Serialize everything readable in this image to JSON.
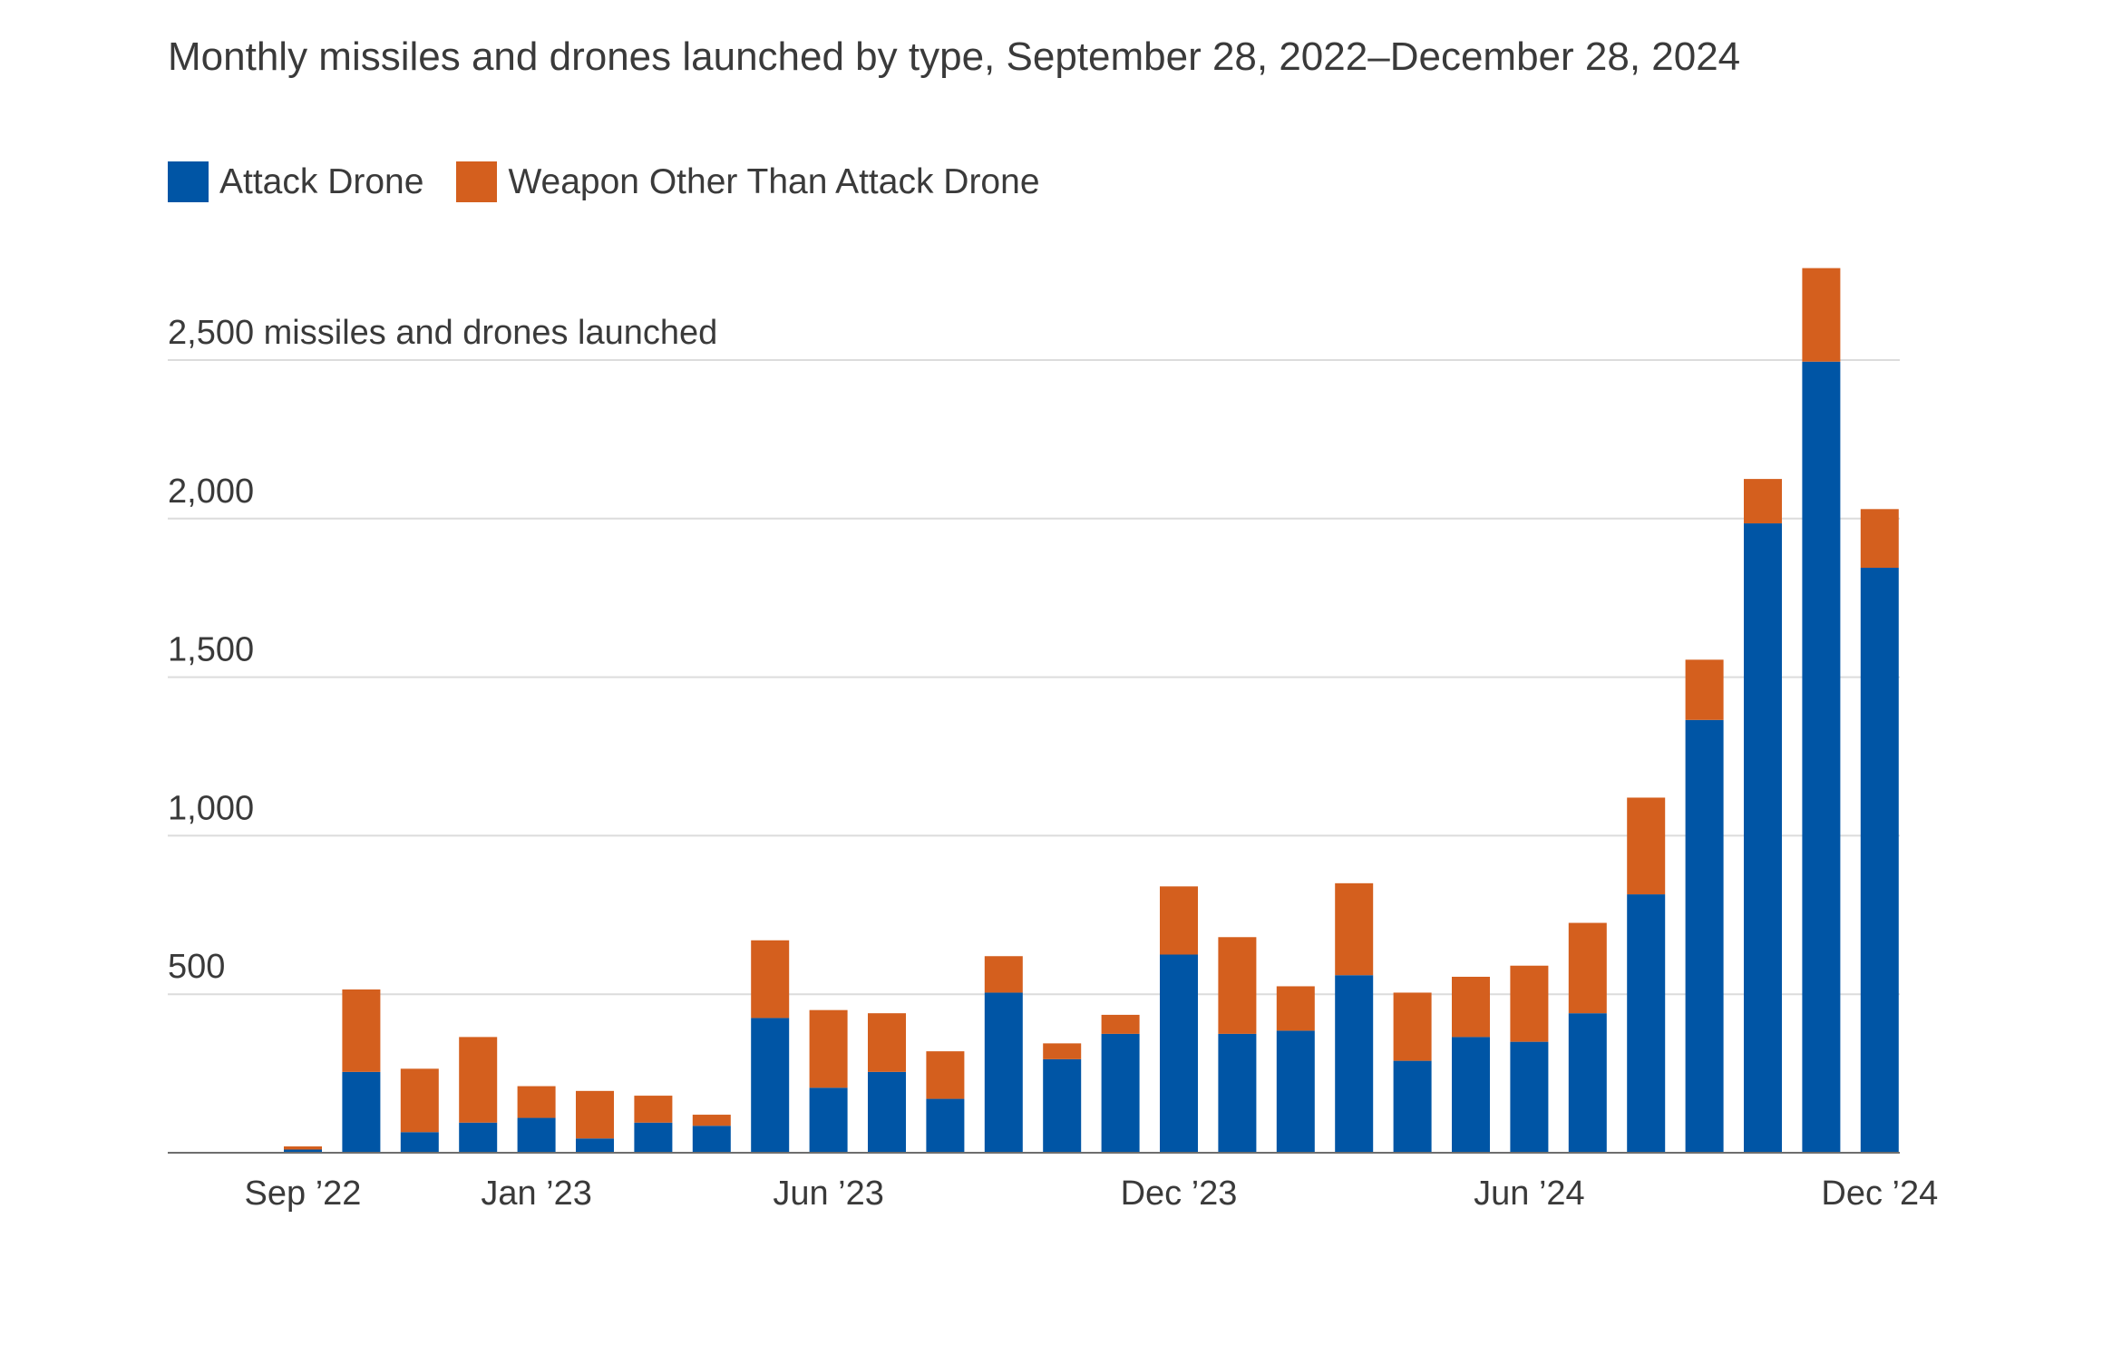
{
  "chart_data": {
    "type": "bar",
    "stacked": true,
    "title": "Monthly missiles and drones launched by type, September 28, 2022–December 28, 2024",
    "ylabel": "missiles and drones launched",
    "y_ticks": [
      {
        "value": 500,
        "label": "500"
      },
      {
        "value": 1000,
        "label": "1,000"
      },
      {
        "value": 1500,
        "label": "1,500"
      },
      {
        "value": 2000,
        "label": "2,000"
      },
      {
        "value": 2500,
        "label": "2,500 missiles and drones launched"
      }
    ],
    "ylim": [
      0,
      2850
    ],
    "x_ticks": [
      {
        "index": 0,
        "label": "Sep ’22"
      },
      {
        "index": 4,
        "label": "Jan ’23"
      },
      {
        "index": 9,
        "label": "Jun ’23"
      },
      {
        "index": 15,
        "label": "Dec ’23"
      },
      {
        "index": 21,
        "label": "Jun ’24"
      },
      {
        "index": 27,
        "label": "Dec ’24"
      }
    ],
    "categories": [
      "Sep 2022",
      "Oct 2022",
      "Nov 2022",
      "Dec 2022",
      "Jan 2023",
      "Feb 2023",
      "Mar 2023",
      "Apr 2023",
      "May 2023",
      "Jun 2023",
      "Jul 2023",
      "Aug 2023",
      "Sep 2023",
      "Oct 2023",
      "Nov 2023",
      "Dec 2023",
      "Jan 2024",
      "Feb 2024",
      "Mar 2024",
      "Apr 2024",
      "May 2024",
      "Jun 2024",
      "Jul 2024",
      "Aug 2024",
      "Sep 2024",
      "Oct 2024",
      "Nov 2024",
      "Dec 2024"
    ],
    "series": [
      {
        "name": "Attack Drone",
        "color": "#0055a5",
        "values": [
          10,
          255,
          65,
          95,
          110,
          45,
          95,
          85,
          425,
          205,
          255,
          170,
          505,
          295,
          375,
          625,
          375,
          385,
          560,
          290,
          365,
          350,
          440,
          815,
          1365,
          1985,
          2495,
          1845
        ]
      },
      {
        "name": "Weapon Other Than Attack Drone",
        "color": "#d45f1e",
        "values": [
          10,
          260,
          200,
          270,
          100,
          150,
          85,
          35,
          245,
          245,
          185,
          150,
          115,
          50,
          60,
          215,
          305,
          140,
          290,
          215,
          190,
          240,
          285,
          305,
          190,
          140,
          295,
          185
        ]
      }
    ]
  }
}
